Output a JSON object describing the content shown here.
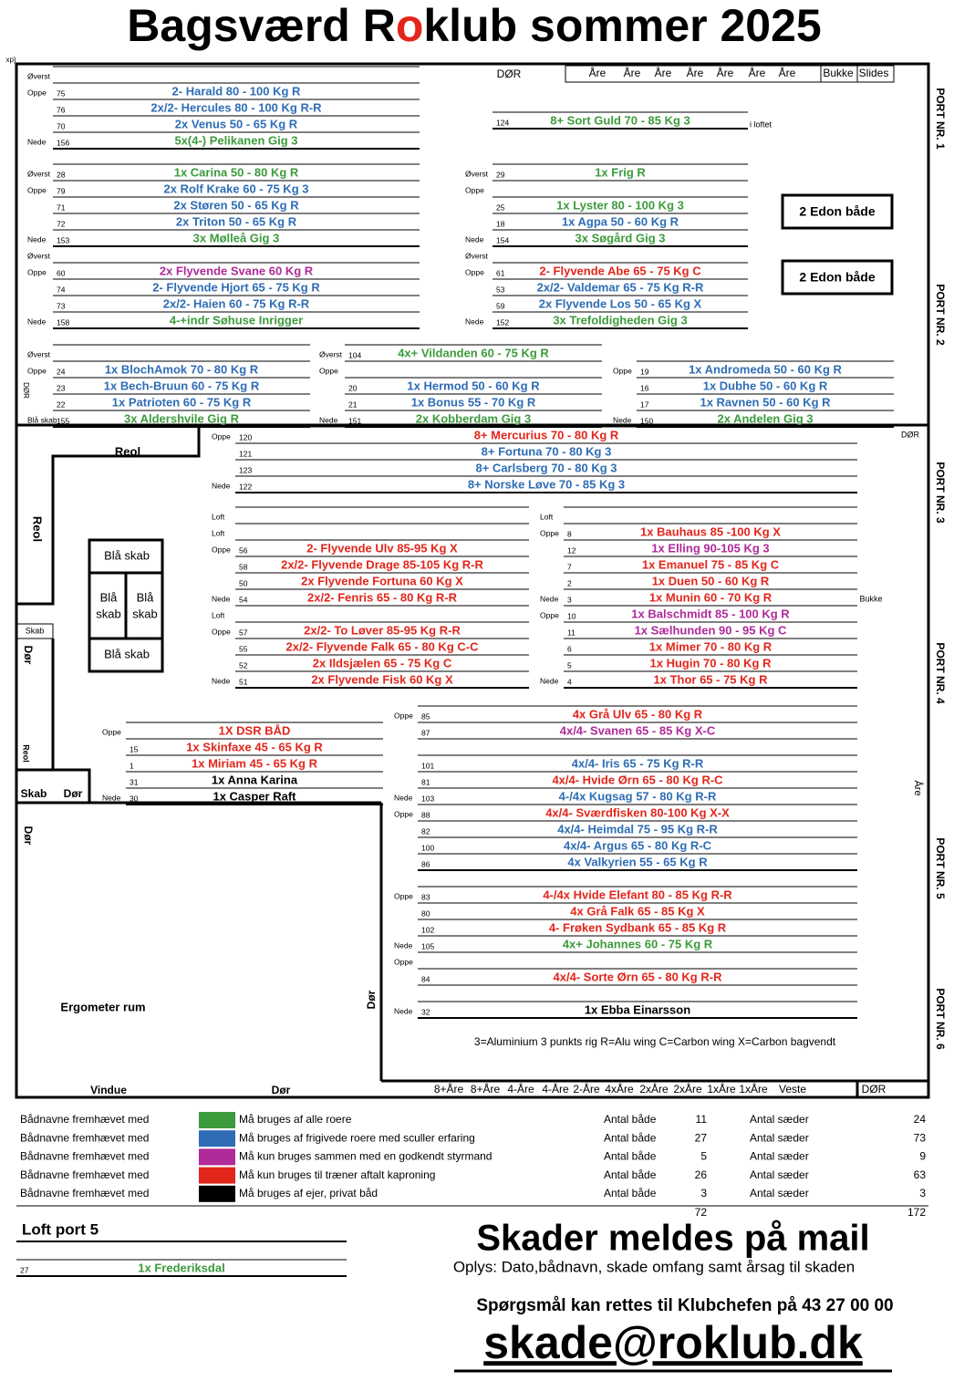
{
  "title_parts": [
    "Bagsværd R",
    "o",
    "klub sommer 2025"
  ],
  "colors": {
    "g": "#3c9b3c",
    "b": "#2e6db5",
    "m": "#b02a9a",
    "r": "#e2261b",
    "k": "#000000"
  },
  "header_strip": [
    "Åre",
    "Åre",
    "Åre",
    "Åre",
    "Åre",
    "Åre",
    "Åre",
    "Bukke",
    "Slides"
  ],
  "bottom_strip": [
    "8+Åre",
    "8+Åre",
    "4-Åre",
    "4-Åre",
    "2-Åre",
    "4xÅre",
    "2xÅre",
    "2xÅre",
    "1xÅre",
    "1xÅre",
    "Veste"
  ],
  "ports": [
    "PORT NR. 1",
    "PORT NR. 2",
    "PORT NR. 3",
    "PORT NR. 4",
    "PORT NR. 5",
    "PORT NR. 6"
  ],
  "labels": [
    "DØR",
    "i loftet",
    "2 Edon både",
    "2 Edon både",
    "Reol",
    "Reol",
    "Blå skab",
    "Blå",
    "skab",
    "Blå",
    "skab",
    "Blå skab",
    "Skab",
    "Dør",
    "Reol",
    "Skab",
    "Dør",
    "Dør",
    "Ergometer rum",
    "Dør",
    "Vindue",
    "Dør",
    "DØR",
    "DØR",
    "Åre",
    "Bukke",
    "xp)",
    "DØR",
    "3=Aluminium 3 punkts rig R=Alu wing C=Carbon wing X=Carbon bagvendt"
  ],
  "groups": [
    {
      "rows": [
        [
          "Øverst",
          null,
          null,
          "k"
        ],
        [
          "Oppe",
          "75",
          "2- Harald 80 - 100 Kg R",
          "b"
        ],
        [
          null,
          "76",
          "2x/2- Hercules 80 - 100 Kg R-R",
          "b"
        ],
        [
          null,
          "70",
          "2x Venus 50 - 65 Kg R",
          "b"
        ],
        [
          "Nede",
          "156",
          "5x(4-) Pelikanen  Gig 3",
          "g"
        ]
      ]
    },
    {
      "rows": [
        [
          null,
          "124",
          "8+ Sort Guld 70 - 85 Kg 3",
          "g"
        ]
      ]
    },
    {
      "rows": [
        [
          "Øverst",
          "28",
          "1x Carina 50 - 80 Kg R",
          "g"
        ],
        [
          "Oppe",
          "79",
          "2x Rolf Krake 60 - 75 Kg 3",
          "b"
        ],
        [
          null,
          "71",
          "2x Støren 50 - 65 Kg R",
          "b"
        ],
        [
          null,
          "72",
          "2x Triton 50 - 65 Kg R",
          "b"
        ],
        [
          "Nede",
          "153",
          "3x Mølleå  Gig 3",
          "g"
        ]
      ]
    },
    {
      "rows": [
        [
          "Øverst",
          "29",
          "1x Frig  R",
          "g"
        ],
        [
          "Oppe",
          null,
          null,
          "k"
        ],
        [
          null,
          "25",
          "1x Lyster 80 - 100 Kg 3",
          "g"
        ],
        [
          null,
          "18",
          "1x Agpa 50 - 60 Kg R",
          "b"
        ],
        [
          "Nede",
          "154",
          "3x Søgård  Gig 3",
          "g"
        ]
      ]
    },
    {
      "rows": [
        [
          "Øverst",
          null,
          null,
          "k"
        ],
        [
          "Oppe",
          "60",
          "2x Flyvende Svane 60 Kg R",
          "m"
        ],
        [
          null,
          "74",
          "2- Flyvende Hjort 65 - 75 Kg R",
          "b"
        ],
        [
          null,
          "73",
          "2x/2- Haien 60 - 75 Kg R-R",
          "b"
        ],
        [
          "Nede",
          "158",
          "4-+indr Søhuse  Inrigger",
          "g"
        ]
      ]
    },
    {
      "rows": [
        [
          "Øverst",
          null,
          null,
          "k"
        ],
        [
          "Oppe",
          "61",
          "2- Flyvende Abe 65 - 75 Kg C",
          "r"
        ],
        [
          null,
          "53",
          "2x/2- Valdemar 65 - 75 Kg R-R",
          "b"
        ],
        [
          null,
          "59",
          "2x Flyvende Los 50 - 65 Kg X",
          "b"
        ],
        [
          "Nede",
          "152",
          "3x Trefoldigheden  Gig 3",
          "g"
        ]
      ]
    },
    {
      "rows": [
        [
          "Øverst",
          null,
          null,
          "k"
        ],
        [
          "Oppe",
          "24",
          "1x BlochAmok 70 - 80 Kg R",
          "b"
        ],
        [
          null,
          "23",
          "1x Bech-Bruun 60 - 75 Kg R",
          "b"
        ],
        [
          null,
          "22",
          "1x Patrioten 60 - 75 Kg R",
          "b"
        ],
        [
          "Blå skab",
          "155",
          "3x Aldershvile  Gig R",
          "g"
        ]
      ]
    },
    {
      "rows": [
        [
          "Øverst",
          "104",
          "4x+ Vildanden 60 - 75 Kg R",
          "g"
        ],
        [
          "Oppe",
          null,
          null,
          "k"
        ],
        [
          null,
          "20",
          "1x Hermod 50 - 60 Kg R",
          "b"
        ],
        [
          null,
          "21",
          "1x Bonus 55 - 70 Kg R",
          "b"
        ],
        [
          "Nede",
          "151",
          "2x Kobberdam  Gig 3",
          "g"
        ]
      ]
    },
    {
      "rows": [
        [
          "Oppe",
          "19",
          "1x Andromeda 50 - 60 Kg R",
          "b"
        ],
        [
          null,
          "16",
          "1x Dubhe 50 - 60 Kg R",
          "b"
        ],
        [
          null,
          "17",
          "1x Ravnen 50 - 60 Kg R",
          "b"
        ],
        [
          "Nede",
          "150",
          "2x Andelen  Gig 3",
          "g"
        ]
      ]
    },
    {
      "rows": [
        [
          "Oppe",
          "120",
          "8+ Mercurius 70 - 80 Kg R",
          "r"
        ],
        [
          null,
          "121",
          "8+ Fortuna 70 - 80 Kg 3",
          "b"
        ],
        [
          null,
          "123",
          "8+ Carlsberg 70 - 80 Kg 3",
          "b"
        ],
        [
          "Nede",
          "122",
          "8+ Norske Løve 70 - 85 Kg 3",
          "b"
        ]
      ]
    },
    {
      "rows": [
        [
          "Loft",
          null,
          null,
          "k"
        ],
        [
          "Loft",
          null,
          null,
          "k"
        ],
        [
          "Oppe",
          "56",
          "2- Flyvende Ulv 85-95 Kg X",
          "r"
        ],
        [
          null,
          "58",
          "2x/2- Flyvende Drage 85-105 Kg R-R",
          "r"
        ],
        [
          null,
          "50",
          "2x Flyvende Fortuna 60 Kg X",
          "r"
        ],
        [
          "Nede",
          "54",
          "2x/2- Fenris 65 - 80 Kg R-R",
          "r"
        ],
        [
          "Loft",
          null,
          null,
          "k"
        ],
        [
          "Oppe",
          "57",
          "2x/2- To Løver 85-95 Kg R-R",
          "r"
        ],
        [
          null,
          "55",
          "2x/2- Flyvende Falk 65 - 80 Kg C-C",
          "r"
        ],
        [
          null,
          "52",
          "2x Ildsjælen 65 - 75 Kg C",
          "r"
        ],
        [
          "Nede",
          "51",
          "2x Flyvende Fisk 60 Kg X",
          "r"
        ]
      ]
    },
    {
      "rows": [
        [
          "Loft",
          null,
          null,
          "k"
        ],
        [
          "Oppe",
          "8",
          "1x Bauhaus 85 -100 Kg X",
          "r"
        ],
        [
          null,
          "12",
          "1x Elling 90-105 Kg 3",
          "m"
        ],
        [
          null,
          "7",
          "1x Emanuel 75 - 85 Kg C",
          "r"
        ],
        [
          null,
          "2",
          "1x Duen 50 - 60 Kg R",
          "r"
        ],
        [
          "Nede",
          "3",
          "1x Munin 60 - 70 Kg R",
          "r"
        ],
        [
          "Oppe",
          "10",
          "1x Balschmidt 85 - 100 Kg R",
          "m"
        ],
        [
          null,
          "11",
          "1x Sælhunden 90 - 95 Kg C",
          "m"
        ],
        [
          null,
          "6",
          "1x Mimer 70 - 80 Kg R",
          "r"
        ],
        [
          null,
          "5",
          "1x Hugin 70 - 80 Kg R",
          "r"
        ],
        [
          "Nede",
          "4",
          "1x Thor 65 - 75 Kg R",
          "r"
        ]
      ]
    },
    {
      "rows": [
        [
          "Oppe",
          null,
          "1X DSR BÅD",
          "r"
        ],
        [
          null,
          "15",
          "1x Skinfaxe 45 - 65 Kg R",
          "r"
        ],
        [
          null,
          "1",
          "1x Miriam 45 - 65 Kg R",
          "r"
        ],
        [
          null,
          "31",
          "1x Anna Karina",
          "k"
        ],
        [
          "Nede",
          "30",
          "1x Casper Raft",
          "k"
        ]
      ]
    },
    {
      "rows": [
        [
          "Oppe",
          "85",
          "4x Grå Ulv 65 - 80 Kg R",
          "r"
        ],
        [
          null,
          "87",
          "4x/4- Svanen 65 - 85 Kg X-C",
          "m"
        ],
        [
          null,
          null,
          null,
          "k"
        ],
        [
          null,
          "101",
          "4x/4- Iris 65 - 75 Kg R-R",
          "b"
        ],
        [
          null,
          "81",
          "4x/4- Hvide Ørn 65 - 80 Kg R-C",
          "r"
        ],
        [
          "Nede",
          "103",
          "4-/4x Kugsag 57 - 80 Kg R-R",
          "b"
        ],
        [
          "Oppe",
          "88",
          "4x/4- Sværdfisken 80-100 Kg X-X",
          "r"
        ],
        [
          null,
          "82",
          "4x/4- Heimdal 75 - 95 Kg R-R",
          "b"
        ],
        [
          null,
          "100",
          "4x/4- Argus 65 - 80 Kg R-C",
          "b"
        ],
        [
          null,
          "86",
          "4x Valkyrien 55 - 65 Kg R",
          "b"
        ]
      ]
    },
    {
      "rows": [
        [
          "Oppe",
          "83",
          "4-/4x Hvide Elefant 80 - 85 Kg R-R",
          "r"
        ],
        [
          null,
          "80",
          "4x Grå Falk 65 - 85 Kg X",
          "r"
        ],
        [
          null,
          "102",
          "4- Frøken Sydbank 65 - 85 Kg R",
          "r"
        ],
        [
          "Nede",
          "105",
          "4x+ Johannes 60 - 75 Kg R",
          "g"
        ],
        [
          "Oppe",
          null,
          null,
          "k"
        ],
        [
          null,
          "84",
          "4x/4- Sorte Ørn 65 - 80 Kg R-R",
          "r"
        ],
        [
          null,
          null,
          null,
          "k"
        ],
        [
          "Nede",
          "32",
          "1x Ebba Einarsson",
          "k"
        ]
      ]
    },
    {
      "rows": [
        [
          null,
          "27",
          "1x Frederiksdal",
          "g"
        ]
      ]
    }
  ],
  "loft_title": "Loft port 5",
  "legend": [
    {
      "lead": "Bådnavne fremhævet med",
      "color": "g",
      "text": "Må bruges af alle roere",
      "boats_label": "Antal både",
      "boats": 11,
      "seats_label": "Antal sæder",
      "seats": 24
    },
    {
      "lead": "Bådnavne fremhævet med",
      "color": "b",
      "text": "Må bruges af  frigivede roere med sculler erfaring",
      "boats_label": "Antal både",
      "boats": 27,
      "seats_label": "Antal sæder",
      "seats": 73
    },
    {
      "lead": "Bådnavne fremhævet med",
      "color": "m",
      "text": "Må kun bruges sammen med en godkendt styrmand",
      "boats_label": "Antal både",
      "boats": 5,
      "seats_label": "Antal sæder",
      "seats": 9
    },
    {
      "lead": "Bådnavne fremhævet med",
      "color": "r",
      "text": "Må kun bruges til træner aftalt kaproning",
      "boats_label": "Antal både",
      "boats": 26,
      "seats_label": "Antal sæder",
      "seats": 63
    },
    {
      "lead": "Bådnavne fremhævet med",
      "color": "k",
      "text": "Må bruges af ejer, privat båd",
      "boats_label": "Antal både",
      "boats": 3,
      "seats_label": "Antal sæder",
      "seats": 3
    }
  ],
  "total_boats": 72,
  "total_seats": 172,
  "notice": {
    "heading": "Skader meldes på mail",
    "info": "Oplys: Dato,bådnavn, skade omfang samt årsag til skaden",
    "question": "Spørgsmål kan rettes til Klubchefen på 43 27 00 00",
    "email": "skade@roklub.dk"
  }
}
